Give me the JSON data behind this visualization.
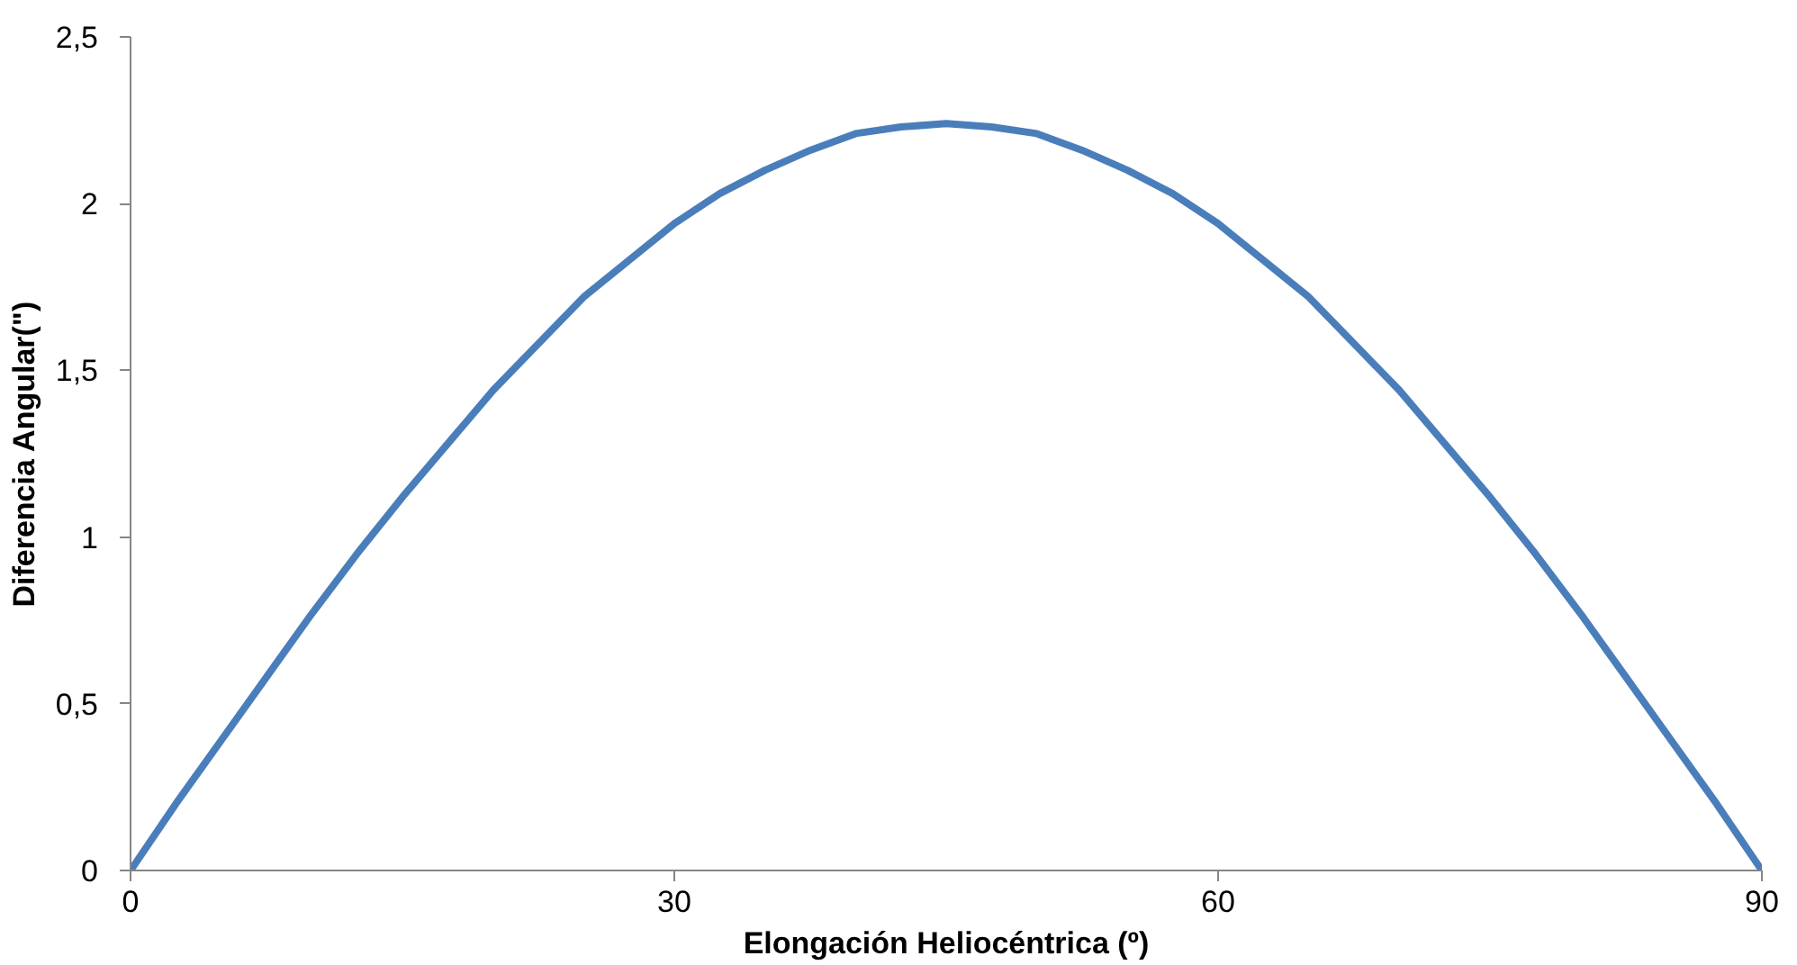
{
  "chart_data": {
    "type": "line",
    "xlabel": "Elongación Heliocéntrica (º)",
    "ylabel": "Diferencia Angular(\")",
    "x": [
      0,
      2.5,
      5,
      7.5,
      10,
      12.5,
      15,
      17.5,
      20,
      22.5,
      25,
      27.5,
      30,
      32.5,
      35,
      37.5,
      40,
      42.5,
      45,
      47.5,
      50,
      52.5,
      55,
      57.5,
      60,
      62.5,
      65,
      67.5,
      70,
      72.5,
      75,
      77.5,
      80,
      82.5,
      85,
      87.5,
      90
    ],
    "series": [
      {
        "color": "#4a7ebb",
        "values": [
          0,
          0.2,
          0.39,
          0.58,
          0.77,
          0.95,
          1.12,
          1.28,
          1.44,
          1.58,
          1.72,
          1.83,
          1.94,
          2.03,
          2.1,
          2.16,
          2.21,
          2.23,
          2.24,
          2.23,
          2.21,
          2.16,
          2.1,
          2.03,
          1.94,
          1.83,
          1.72,
          1.58,
          1.44,
          1.28,
          1.12,
          0.95,
          0.77,
          0.58,
          0.39,
          0.2,
          0
        ]
      }
    ],
    "xlim": [
      0,
      90
    ],
    "xticks": [
      0,
      30,
      60,
      90
    ],
    "ylim": [
      0,
      2.5
    ],
    "yticks": [
      0,
      {
        "value": 0.5,
        "label": "0,5"
      },
      1,
      {
        "value": 1.5,
        "label": "1,5"
      },
      2,
      {
        "value": 2.5,
        "label": "2,5"
      }
    ],
    "grid": false,
    "marker": "none",
    "line_style": "solid"
  }
}
